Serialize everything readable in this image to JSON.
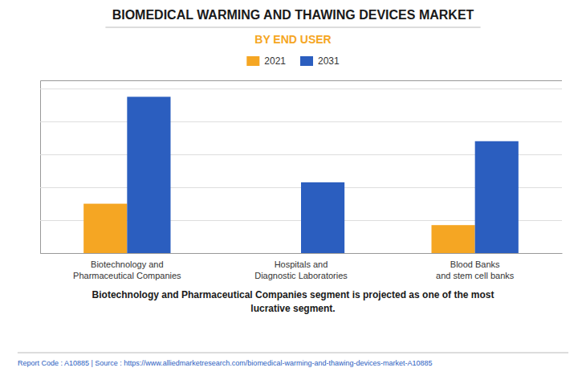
{
  "chart_data": {
    "type": "bar",
    "title": "BIOMEDICAL WARMING AND THAWING DEVICES MARKET",
    "subtitle": "BY END USER",
    "categories": [
      "Biotechnology and\nPharmaceutical Companies",
      "Hospitals and\nDiagnostic Laboratories",
      "Blood Banks\nand stem cell banks"
    ],
    "series": [
      {
        "name": "2021",
        "color": "#F5A623",
        "values": [
          0.3,
          0.0,
          0.17
        ]
      },
      {
        "name": "2031",
        "color": "#2B5EBF",
        "values": [
          0.95,
          0.43,
          0.68
        ]
      }
    ],
    "ylim": [
      0,
      1.05
    ],
    "yticks": [
      0.2,
      0.4,
      0.6,
      0.8,
      1.0
    ],
    "grid": true,
    "tick_labels": "x",
    "legend": "top",
    "annotation": "Biotechnology and Pharmaceutical Companies segment is projected as one of the most\nlucrative segment.",
    "footer": "Report Code : A10885  |  Source : https://www.alliedmarketresearch.com/biomedical-warming-and-thawing-devices-market-A10885"
  }
}
